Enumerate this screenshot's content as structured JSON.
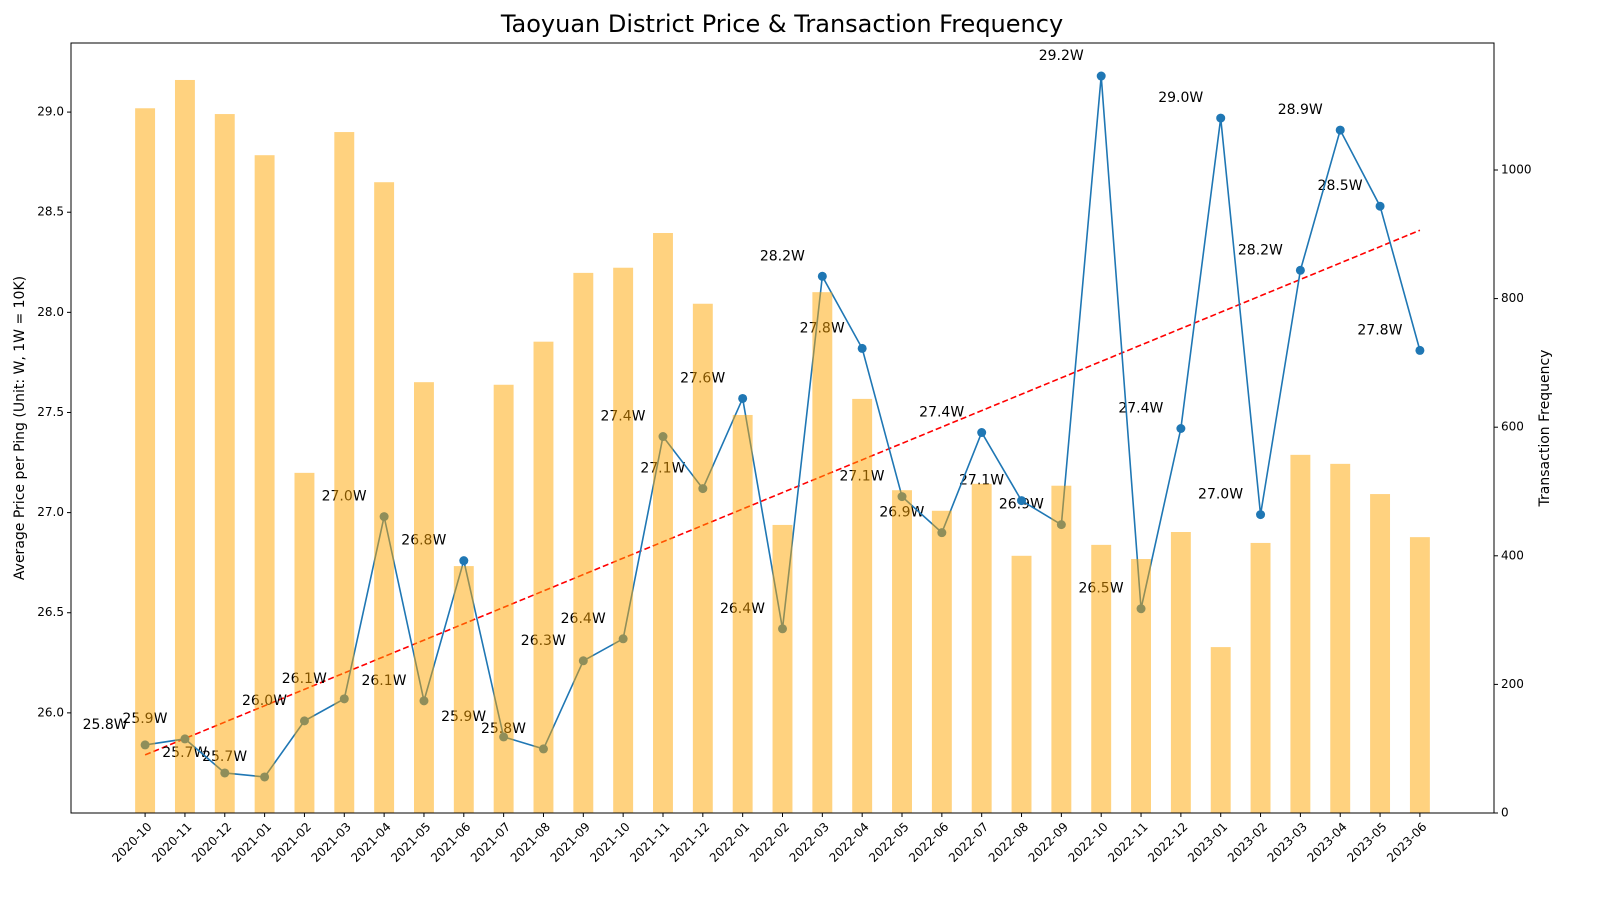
{
  "chart_data": {
    "type": "bar-line",
    "title": "Taoyuan District Price & Transaction Frequency",
    "ylabel": "Average Price per Ping (Unit: W, 1W = 10K)",
    "y2label": "Transaction Frequency",
    "categories": [
      "2020-10",
      "2020-11",
      "2020-12",
      "2021-01",
      "2021-02",
      "2021-03",
      "2021-04",
      "2021-05",
      "2021-06",
      "2021-07",
      "2021-08",
      "2021-09",
      "2021-10",
      "2021-11",
      "2021-12",
      "2022-01",
      "2022-02",
      "2022-03",
      "2022-04",
      "2022-05",
      "2022-06",
      "2022-07",
      "2022-08",
      "2022-09",
      "2022-10",
      "2022-11",
      "2022-12",
      "2023-01",
      "2023-02",
      "2023-03",
      "2023-04",
      "2023-05",
      "2023-06"
    ],
    "series": [
      {
        "type": "line",
        "color": "#1f77b4",
        "values": [
          25.84,
          25.87,
          25.7,
          25.68,
          25.96,
          26.07,
          26.98,
          26.06,
          26.76,
          25.88,
          25.82,
          26.26,
          26.37,
          27.38,
          27.12,
          27.57,
          26.42,
          28.18,
          27.82,
          27.08,
          26.9,
          27.4,
          27.06,
          26.94,
          29.18,
          26.52,
          27.42,
          28.97,
          26.99,
          28.21,
          28.91,
          28.53,
          27.81
        ],
        "value_labels": [
          "25.8W",
          "25.9W",
          "25.7W",
          "25.7W",
          "26.0W",
          "26.1W",
          "27.0W",
          "26.1W",
          "26.8W",
          "25.9W",
          "25.8W",
          "26.3W",
          "26.4W",
          "27.4W",
          "27.1W",
          "27.6W",
          "26.4W",
          "28.2W",
          "27.8W",
          "27.1W",
          "26.9W",
          "27.4W",
          "27.1W",
          "26.9W",
          "29.2W",
          "26.5W",
          "27.4W",
          "29.0W",
          "27.0W",
          "28.2W",
          "28.9W",
          "28.5W",
          "27.8W"
        ]
      },
      {
        "type": "bar",
        "color": "#ffa500",
        "axis": "y2",
        "values": [
          1096,
          1140,
          1087,
          1023,
          529,
          1059,
          981,
          670,
          384,
          666,
          733,
          840,
          848,
          902,
          792,
          619,
          448,
          810,
          644,
          502,
          470,
          512,
          400,
          509,
          417,
          395,
          437,
          258,
          420,
          557,
          543,
          496,
          429
        ]
      }
    ],
    "trend": {
      "color": "#ff0000",
      "values": [
        25.79,
        28.41
      ]
    },
    "ylim": [
      25.5,
      29.345
    ],
    "yticks": [
      {
        "value": 26,
        "label": "26.0"
      },
      26.5,
      {
        "value": 27,
        "label": "27.0"
      },
      27.5,
      {
        "value": 28,
        "label": "28.0"
      },
      28.5,
      {
        "value": 29,
        "label": "29.0"
      }
    ],
    "y2lim": [
      0,
      1197.5
    ],
    "y2ticks": [
      0,
      200,
      400,
      600,
      800,
      1000
    ]
  }
}
